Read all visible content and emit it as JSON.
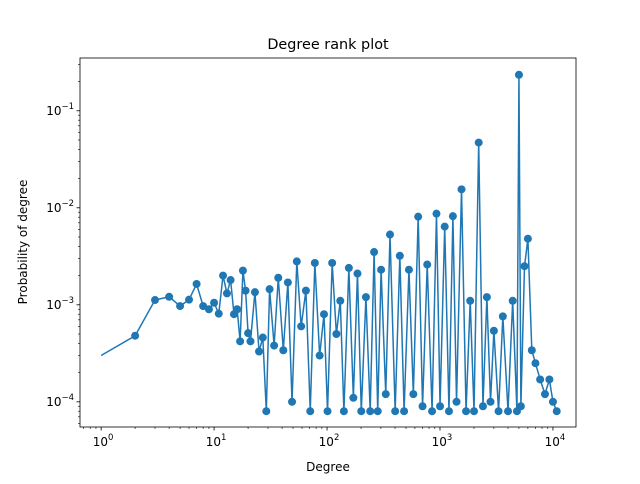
{
  "chart_data": {
    "type": "line",
    "title": "Degree rank plot",
    "xlabel": "Degree",
    "ylabel": "Probability of degree",
    "xscale": "log",
    "yscale": "log",
    "xlim": [
      0.65,
      16000
    ],
    "ylim": [
      5.5e-05,
      0.35
    ],
    "grid": false,
    "legend": false,
    "x_ticks": [
      {
        "value": 1,
        "base": "10",
        "exp": "0"
      },
      {
        "value": 10,
        "base": "10",
        "exp": "1"
      },
      {
        "value": 100,
        "base": "10",
        "exp": "2"
      },
      {
        "value": 1000,
        "base": "10",
        "exp": "3"
      },
      {
        "value": 10000,
        "base": "10",
        "exp": "4"
      }
    ],
    "y_ticks": [
      {
        "value": 0.0001,
        "base": "10",
        "exp": "−4"
      },
      {
        "value": 0.001,
        "base": "10",
        "exp": "−3"
      },
      {
        "value": 0.01,
        "base": "10",
        "exp": "−2"
      },
      {
        "value": 0.1,
        "base": "10",
        "exp": "−1"
      }
    ],
    "series": [
      {
        "color": "#1f77b4",
        "marker": "circle",
        "x": [
          0,
          1,
          2,
          3,
          4,
          5,
          6,
          7,
          8,
          9,
          10,
          11,
          12,
          13,
          14,
          15,
          16,
          17,
          18,
          19,
          20,
          22,
          24,
          26,
          28,
          30,
          33,
          36,
          40,
          44,
          48,
          53,
          58,
          64,
          70,
          77,
          85,
          93,
          100,
          110,
          120,
          130,
          140,
          155,
          170,
          185,
          200,
          220,
          240,
          260,
          280,
          300,
          330,
          360,
          400,
          440,
          480,
          530,
          580,
          640,
          700,
          770,
          850,
          930,
          1000,
          1100,
          1200,
          1300,
          1400,
          1550,
          1700,
          1850,
          2000,
          2200,
          2400,
          2600,
          2800,
          3000,
          3300,
          3600,
          4000,
          4400,
          4800,
          5000,
          5200,
          5600,
          6000,
          6500,
          7000,
          7700,
          8500,
          9300,
          10000,
          10800
        ],
        "y": [
          0.0003,
          0.00048,
          0.00112,
          0.00121,
          0.00097,
          0.00113,
          0.00164,
          0.00097,
          0.0009,
          0.00105,
          0.00081,
          0.002,
          0.00131,
          0.0018,
          0.0008,
          0.0009,
          0.00042,
          0.00225,
          0.0014,
          0.00051,
          0.00042,
          0.00135,
          0.00033,
          0.00046,
          8e-05,
          0.00145,
          0.00038,
          0.0019,
          0.00034,
          0.0017,
          0.0001,
          0.0028,
          0.0006,
          0.0014,
          8e-05,
          0.0027,
          0.0003,
          0.0008,
          8e-05,
          0.0027,
          0.0005,
          0.0011,
          8e-05,
          0.0024,
          0.00011,
          0.0021,
          8e-05,
          0.0012,
          8e-05,
          0.0035,
          8e-05,
          0.0023,
          0.00012,
          0.0053,
          8e-05,
          0.0032,
          8e-05,
          0.0023,
          0.00012,
          0.0081,
          9e-05,
          0.0026,
          8e-05,
          0.0087,
          9e-05,
          0.0064,
          8e-05,
          0.0082,
          0.0001,
          0.0155,
          8e-05,
          0.0011,
          8e-05,
          0.047,
          9e-05,
          0.0012,
          0.0001,
          0.00054,
          8e-05,
          0.00076,
          8e-05,
          0.0011,
          8e-05,
          0.235,
          9e-05,
          0.0025,
          0.0048,
          0.00034,
          0.00025,
          0.00017,
          0.00012,
          0.00017,
          0.0001,
          8e-05
        ]
      }
    ]
  }
}
